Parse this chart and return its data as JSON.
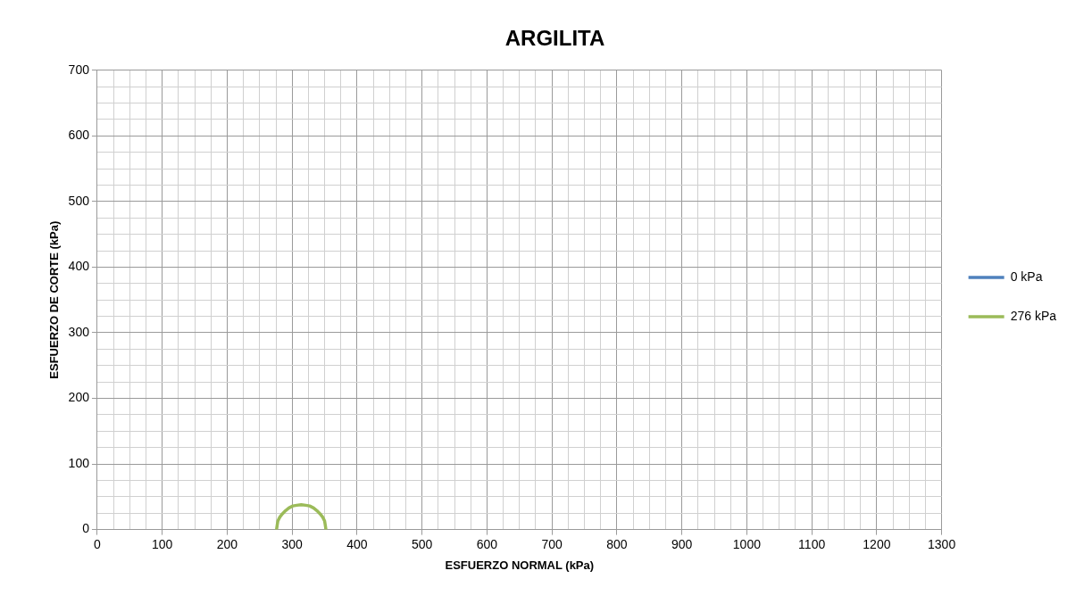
{
  "chart_data": {
    "type": "line",
    "title": "ARGILITA",
    "xlabel": "ESFUERZO NORMAL (kPa)",
    "ylabel": "ESFUERZO DE CORTE (kPa)",
    "xlim": [
      0,
      1300
    ],
    "ylim": [
      0,
      700
    ],
    "xticks": [
      0,
      {
        "value": 25,
        "label": null
      },
      {
        "value": 50,
        "label": null
      },
      {
        "value": 75,
        "label": null
      },
      100,
      {
        "value": 125,
        "label": null
      },
      {
        "value": 150,
        "label": null
      },
      {
        "value": 175,
        "label": null
      },
      200,
      {
        "value": 225,
        "label": null
      },
      {
        "value": 250,
        "label": null
      },
      {
        "value": 275,
        "label": null
      },
      300,
      {
        "value": 325,
        "label": null
      },
      {
        "value": 350,
        "label": null
      },
      {
        "value": 375,
        "label": null
      },
      400,
      {
        "value": 425,
        "label": null
      },
      {
        "value": 450,
        "label": null
      },
      {
        "value": 475,
        "label": null
      },
      500,
      {
        "value": 525,
        "label": null
      },
      {
        "value": 550,
        "label": null
      },
      {
        "value": 575,
        "label": null
      },
      600,
      {
        "value": 625,
        "label": null
      },
      {
        "value": 650,
        "label": null
      },
      {
        "value": 675,
        "label": null
      },
      700,
      {
        "value": 725,
        "label": null
      },
      {
        "value": 750,
        "label": null
      },
      {
        "value": 775,
        "label": null
      },
      800,
      {
        "value": 825,
        "label": null
      },
      {
        "value": 850,
        "label": null
      },
      {
        "value": 875,
        "label": null
      },
      900,
      {
        "value": 925,
        "label": null
      },
      {
        "value": 950,
        "label": null
      },
      {
        "value": 975,
        "label": null
      },
      1000,
      {
        "value": 1025,
        "label": null
      },
      {
        "value": 1050,
        "label": null
      },
      {
        "value": 1075,
        "label": null
      },
      1100,
      {
        "value": 1125,
        "label": null
      },
      {
        "value": 1150,
        "label": null
      },
      {
        "value": 1175,
        "label": null
      },
      1200,
      {
        "value": 1225,
        "label": null
      },
      {
        "value": 1250,
        "label": null
      },
      {
        "value": 1275,
        "label": null
      },
      1300
    ],
    "yticks": [
      0,
      {
        "value": 25,
        "label": null
      },
      {
        "value": 50,
        "label": null
      },
      {
        "value": 75,
        "label": null
      },
      100,
      {
        "value": 125,
        "label": null
      },
      {
        "value": 150,
        "label": null
      },
      {
        "value": 175,
        "label": null
      },
      200,
      {
        "value": 225,
        "label": null
      },
      {
        "value": 250,
        "label": null
      },
      {
        "value": 275,
        "label": null
      },
      300,
      {
        "value": 325,
        "label": null
      },
      {
        "value": 350,
        "label": null
      },
      {
        "value": 375,
        "label": null
      },
      400,
      {
        "value": 425,
        "label": null
      },
      {
        "value": 450,
        "label": null
      },
      {
        "value": 475,
        "label": null
      },
      500,
      {
        "value": 525,
        "label": null
      },
      {
        "value": 550,
        "label": null
      },
      {
        "value": 575,
        "label": null
      },
      600,
      {
        "value": 625,
        "label": null
      },
      {
        "value": 650,
        "label": null
      },
      {
        "value": 675,
        "label": null
      },
      700
    ],
    "grid": true,
    "legend": "right",
    "marker": "none",
    "line_style": "solid",
    "series": [
      {
        "name": "0 kPa",
        "color": "#4f81bd"
      },
      {
        "name": "276 kPa",
        "color": "#9bbb59",
        "x": [
          352,
          351,
          350,
          347,
          343,
          338,
          333,
          327,
          321,
          314,
          307,
          301,
          295,
          290,
          285,
          281,
          278,
          277,
          276
        ],
        "values": [
          0,
          7,
          13,
          19,
          24,
          29,
          33,
          36,
          37,
          38,
          37,
          36,
          33,
          29,
          24,
          19,
          13,
          7,
          0
        ]
      }
    ]
  }
}
